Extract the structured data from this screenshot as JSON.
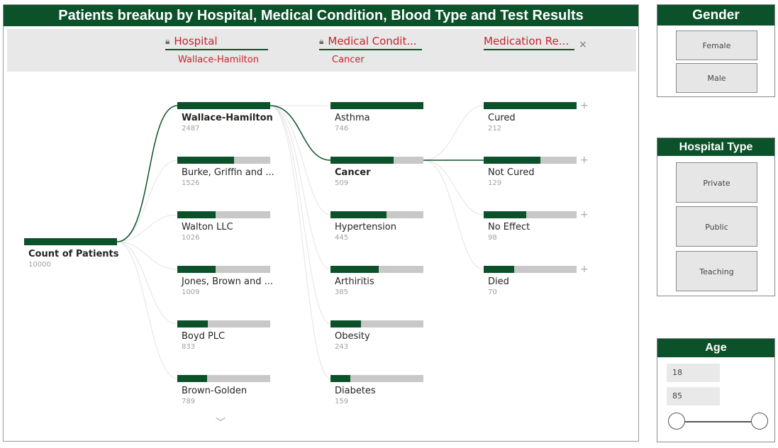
{
  "title": "Patients breakup by Hospital, Medical Condition, Blood Type and Test Results",
  "levels": [
    {
      "header": "Hospital",
      "selected": "Wallace-Hamilton",
      "icon": "lock-icon"
    },
    {
      "header": "Medical Condit...",
      "selected": "Cancer",
      "icon": "lock-icon"
    },
    {
      "header": "Medication Re...",
      "close": "×"
    }
  ],
  "root": {
    "label": "Count of Patients",
    "value": "10000"
  },
  "hospitals": [
    {
      "label": "Wallace-Hamilton",
      "value": "2487",
      "fraction": 1.0
    },
    {
      "label": "Burke, Griffin and ...",
      "value": "1526",
      "fraction": 0.61
    },
    {
      "label": "Walton LLC",
      "value": "1026",
      "fraction": 0.41
    },
    {
      "label": "Jones, Brown and ...",
      "value": "1009",
      "fraction": 0.41
    },
    {
      "label": "Boyd PLC",
      "value": "833",
      "fraction": 0.33
    },
    {
      "label": "Brown-Golden",
      "value": "789",
      "fraction": 0.32
    }
  ],
  "conditions": [
    {
      "label": "Asthma",
      "value": "746",
      "fraction": 1.0
    },
    {
      "label": "Cancer",
      "value": "509",
      "fraction": 0.68
    },
    {
      "label": "Hypertension",
      "value": "445",
      "fraction": 0.6
    },
    {
      "label": "Arthiritis",
      "value": "385",
      "fraction": 0.52
    },
    {
      "label": "Obesity",
      "value": "243",
      "fraction": 0.33
    },
    {
      "label": "Diabetes",
      "value": "159",
      "fraction": 0.21
    }
  ],
  "results": [
    {
      "label": "Cured",
      "value": "212",
      "fraction": 1.0
    },
    {
      "label": "Not Cured",
      "value": "129",
      "fraction": 0.61
    },
    {
      "label": "No Effect",
      "value": "98",
      "fraction": 0.46
    },
    {
      "label": "Died",
      "value": "70",
      "fraction": 0.33
    }
  ],
  "plus_glyph": "+",
  "more_glyph": "﹀",
  "gender": {
    "title": "Gender",
    "options": [
      "Female",
      "Male"
    ]
  },
  "hospital_type": {
    "title": "Hospital Type",
    "options": [
      "Private",
      "Public",
      "Teaching"
    ]
  },
  "age": {
    "title": "Age",
    "min": "18",
    "max": "85"
  },
  "colors": {
    "accent": "#0b5129",
    "highlight_text": "#c8232c",
    "bar_bg": "#c8c8c8"
  }
}
